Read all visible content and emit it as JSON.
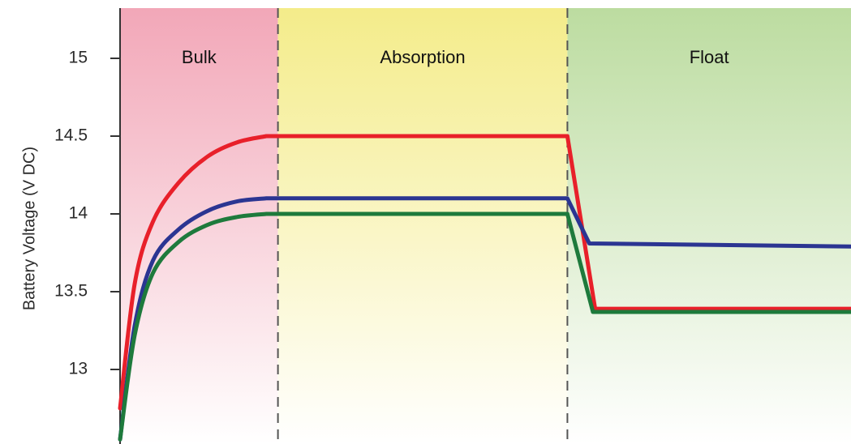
{
  "chart_data": {
    "type": "line",
    "title": "",
    "ylabel": "Battery Voltage (V DC)",
    "xlabel": "",
    "ylim": [
      12.5,
      15.3
    ],
    "xlim": [
      0,
      10
    ],
    "yticks": [
      13,
      13.5,
      14,
      14.5,
      15
    ],
    "ytick_labels": [
      "13",
      "13.5",
      "14",
      "14.5",
      "15"
    ],
    "grid": false,
    "phases": [
      {
        "name": "Bulk",
        "start": 0,
        "end": 2.16,
        "color": "#f2a7b8"
      },
      {
        "name": "Absorption",
        "start": 2.16,
        "end": 6.12,
        "color": "#f4ec8a"
      },
      {
        "name": "Float",
        "start": 6.12,
        "end": 10,
        "color": "#bcdca0"
      }
    ],
    "series": [
      {
        "color": "#e8202a",
        "x": [
          0,
          0.2,
          0.45,
          0.8,
          1.2,
          1.6,
          2.0,
          2.16,
          6.12,
          6.5,
          10
        ],
        "y": [
          12.75,
          13.55,
          13.95,
          14.2,
          14.37,
          14.46,
          14.5,
          14.5,
          14.5,
          13.39,
          13.39
        ]
      },
      {
        "color": "#2b3592",
        "x": [
          0,
          0.2,
          0.45,
          0.8,
          1.2,
          1.6,
          2.0,
          2.16,
          6.12,
          6.42,
          10
        ],
        "y": [
          12.55,
          13.28,
          13.7,
          13.9,
          14.02,
          14.08,
          14.1,
          14.1,
          14.1,
          13.81,
          13.79
        ]
      },
      {
        "color": "#1e7a3c",
        "x": [
          0,
          0.2,
          0.45,
          0.8,
          1.2,
          1.6,
          2.0,
          2.16,
          6.12,
          6.47,
          10
        ],
        "y": [
          12.55,
          13.22,
          13.62,
          13.82,
          13.93,
          13.98,
          14.0,
          14.0,
          14.0,
          13.37,
          13.37
        ]
      }
    ]
  }
}
